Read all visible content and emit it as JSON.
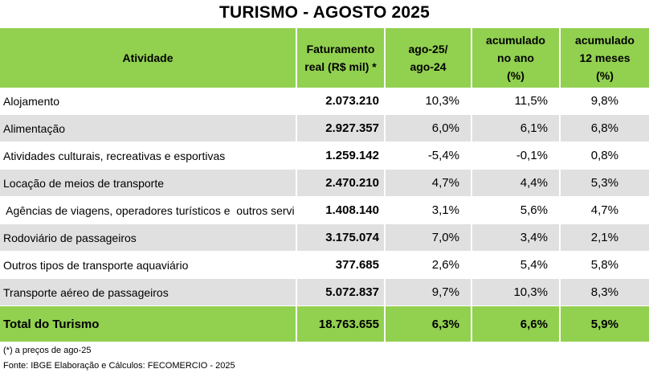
{
  "title": "TURISMO - AGOSTO 2025",
  "headers": {
    "atividade": "Atividade",
    "faturamento_l1": "Faturamento",
    "faturamento_l2": "real (R$ mil)  *",
    "var_l1": "ago-25/",
    "var_l2": "ago-24",
    "acum_ano_l1": "acumulado",
    "acum_ano_l2": "no ano",
    "acum_ano_l3": "(%)",
    "acum_12_l1": "acumulado",
    "acum_12_l2": "12 meses",
    "acum_12_l3": "(%)"
  },
  "rows": [
    {
      "atividade": "Alojamento",
      "faturamento": "2.073.210",
      "var": "10,3%",
      "acum_ano": "11,5%",
      "acum_12": "9,8%"
    },
    {
      "atividade": "Alimentação",
      "faturamento": "2.927.357",
      "var": "6,0%",
      "acum_ano": "6,1%",
      "acum_12": "6,8%"
    },
    {
      "atividade": "Atividades culturais, recreativas e esportivas",
      "faturamento": "1.259.142",
      "var": "-5,4%",
      "acum_ano": "-0,1%",
      "acum_12": "0,8%"
    },
    {
      "atividade": "Locação de meios de transporte",
      "faturamento": "2.470.210",
      "var": "4,7%",
      "acum_ano": "4,4%",
      "acum_12": "5,3%"
    },
    {
      "atividade": " Agências de viagens, operadores turísticos e  outros servi",
      "faturamento": "1.408.140",
      "var": "3,1%",
      "acum_ano": "5,6%",
      "acum_12": "4,7%"
    },
    {
      "atividade": "Rodoviário de passageiros",
      "faturamento": "3.175.074",
      "var": "7,0%",
      "acum_ano": "3,4%",
      "acum_12": "2,1%"
    },
    {
      "atividade": "Outros tipos de transporte aquaviário",
      "faturamento": "377.685",
      "var": "2,6%",
      "acum_ano": "5,4%",
      "acum_12": "5,8%"
    },
    {
      "atividade": "Transporte aéreo de passageiros",
      "faturamento": "5.072.837",
      "var": "9,7%",
      "acum_ano": "10,3%",
      "acum_12": "8,3%"
    }
  ],
  "total": {
    "atividade": "Total do Turismo",
    "faturamento": "18.763.655",
    "var": "6,3%",
    "acum_ano": "6,6%",
    "acum_12": "5,9%"
  },
  "footnote": "(*) a preços de ago-25",
  "source": "Fonte: IBGE Elaboração e Cálculos: FECOMERCIO - 2025",
  "colors": {
    "header_green": "#92d050",
    "alt_row_gray": "#e0e0e0"
  }
}
